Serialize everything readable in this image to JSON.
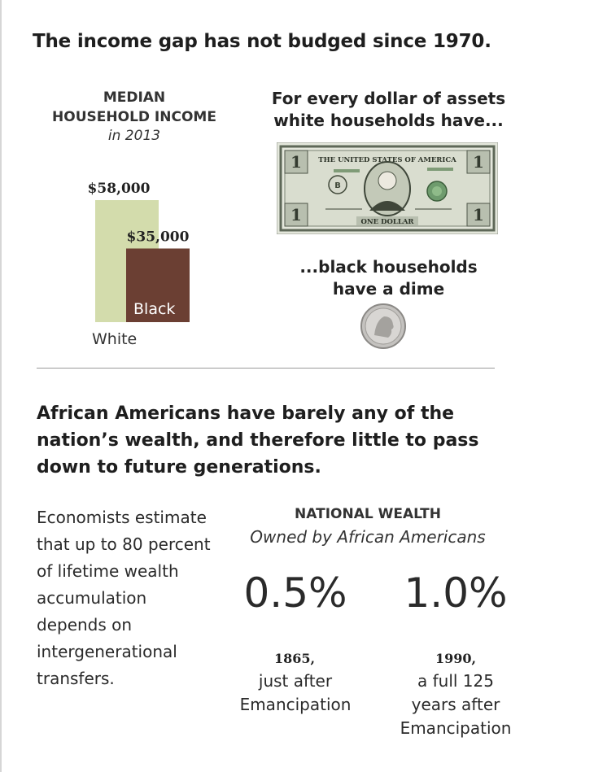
{
  "headline": "The income gap has not budged since 1970.",
  "income_chart": {
    "title_line1": "MEDIAN",
    "title_line2": "HOUSEHOLD INCOME",
    "subtitle": "in 2013"
  },
  "chart_data": {
    "type": "bar",
    "title": "MEDIAN HOUSEHOLD INCOME in 2013",
    "categories": [
      "White",
      "Black"
    ],
    "values": [
      58000,
      35000
    ],
    "value_labels": [
      "$58,000",
      "$35,000"
    ],
    "colors": [
      "#d3dcac",
      "#6b3f33"
    ],
    "ylim": [
      0,
      58000
    ],
    "grid": false
  },
  "assets": {
    "heading_line1": "For every dollar of assets",
    "heading_line2": "white households have...",
    "caption_line1": "...black households",
    "caption_line2": "have a dime",
    "bill_image": {
      "header": "THE UNITED STATES OF AMERICA",
      "footer": "ONE DOLLAR"
    }
  },
  "section2": {
    "heading": "African Americans have barely any of the nation’s wealth, and therefore little to pass down to future generations.",
    "economists_text": "Economists estimate that up to 80 percent of lifetime wealth accumulation depends on intergenerational transfers."
  },
  "national_wealth": {
    "title": "NATIONAL WEALTH",
    "subtitle": "Owned by African Americans",
    "stats": [
      {
        "value": "0.5%",
        "year": "1865,",
        "desc_line1": "just after",
        "desc_line2": "Emancipation",
        "desc_line3": ""
      },
      {
        "value": "1.0%",
        "year": "1990,",
        "desc_line1": "a full 125",
        "desc_line2": "years after",
        "desc_line3": "Emancipation"
      }
    ]
  }
}
